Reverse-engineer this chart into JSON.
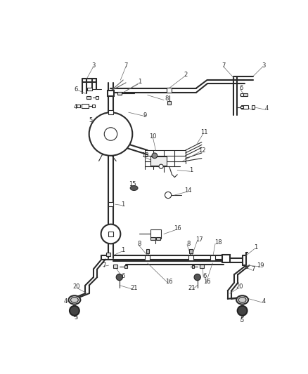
{
  "bg_color": "#ffffff",
  "line_color": "#2a2a2a",
  "fig_width": 4.38,
  "fig_height": 5.33,
  "dpi": 100,
  "lw_pipe": 1.5,
  "lw_thin": 0.8,
  "lw_leader": 0.5,
  "label_fs": 6.0,
  "leader_color": "#666666"
}
